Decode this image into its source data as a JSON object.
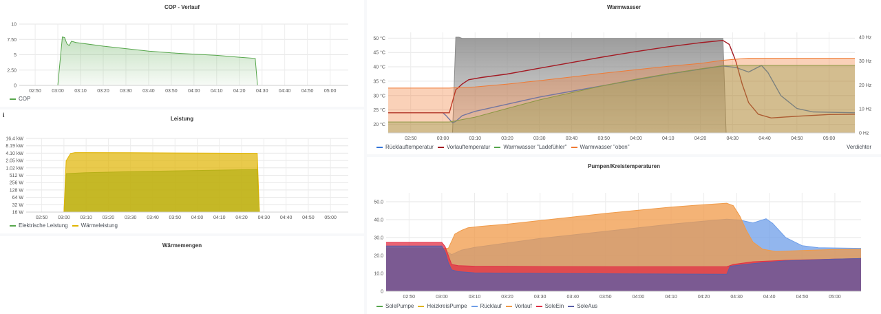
{
  "panels": {
    "cop": {
      "title": "COP - Verlauf"
    },
    "leistung": {
      "title": "Leistung",
      "info_icon": "info-icon"
    },
    "waermemengen": {
      "title": "Wärmemengen"
    },
    "warmwasser": {
      "title": "Warmwasser",
      "right_axis_label": "Verdichter"
    },
    "pumpen": {
      "title": "Pumpen/Kreistemperaturen"
    }
  },
  "time_ticks": [
    "02:50",
    "03:00",
    "03:10",
    "03:20",
    "03:30",
    "03:40",
    "03:50",
    "04:00",
    "04:10",
    "04:20",
    "04:30",
    "04:40",
    "04:50",
    "05:00"
  ],
  "chart_data": [
    {
      "id": "cop",
      "type": "area",
      "title": "COP - Verlauf",
      "x_range": [
        "02:43",
        "05:08"
      ],
      "ylim": [
        0,
        10
      ],
      "y_ticks": [
        "0",
        "2.50",
        "5",
        "7.50",
        "10"
      ],
      "y_tick_values": [
        0,
        2.5,
        5,
        7.5,
        10
      ],
      "grid": true,
      "legend": "bottom-left",
      "series": [
        {
          "name": "COP",
          "color": "#56a64b",
          "points": [
            [
              "02:43",
              0
            ],
            [
              "03:00",
              0
            ],
            [
              "03:01",
              4
            ],
            [
              "03:02",
              7.9
            ],
            [
              "03:03",
              7.8
            ],
            [
              "03:04",
              6.8
            ],
            [
              "03:05",
              6.5
            ],
            [
              "03:06",
              7.2
            ],
            [
              "03:08",
              7.0
            ],
            [
              "03:10",
              6.9
            ],
            [
              "03:20",
              6.4
            ],
            [
              "03:30",
              6.0
            ],
            [
              "03:40",
              5.6
            ],
            [
              "03:50",
              5.3
            ],
            [
              "04:00",
              5.1
            ],
            [
              "04:10",
              4.9
            ],
            [
              "04:20",
              4.6
            ],
            [
              "04:27",
              4.4
            ],
            [
              "04:28",
              0
            ],
            [
              "05:08",
              0
            ]
          ]
        }
      ]
    },
    {
      "id": "leistung",
      "type": "area",
      "title": "Leistung",
      "x_range": [
        "02:43",
        "05:08"
      ],
      "y_scale": "log2",
      "y_ticks": [
        "16 W",
        "32 W",
        "64 W",
        "128 W",
        "256 W",
        "512 W",
        "1.02 kW",
        "2.05 kW",
        "4.10 kW",
        "8.19 kW",
        "16.4 kW"
      ],
      "y_tick_values": [
        16,
        32,
        64,
        128,
        256,
        512,
        1024,
        2048,
        4096,
        8192,
        16384
      ],
      "grid": true,
      "legend": "bottom-left",
      "series": [
        {
          "name": "Elektrische Leistung",
          "color": "#56a64b",
          "points": [
            [
              "02:43",
              16
            ],
            [
              "03:00",
              16
            ],
            [
              "03:01",
              600
            ],
            [
              "03:10",
              650
            ],
            [
              "03:30",
              720
            ],
            [
              "04:00",
              800
            ],
            [
              "04:27",
              880
            ],
            [
              "04:28",
              16
            ],
            [
              "05:08",
              16
            ]
          ]
        },
        {
          "name": "Wärmeleistung",
          "color": "#e0b400",
          "points": [
            [
              "02:43",
              16
            ],
            [
              "03:00",
              16
            ],
            [
              "03:01",
              2000
            ],
            [
              "03:03",
              4000
            ],
            [
              "03:05",
              4300
            ],
            [
              "03:30",
              4250
            ],
            [
              "04:00",
              4150
            ],
            [
              "04:27",
              4050
            ],
            [
              "04:28",
              16
            ],
            [
              "05:08",
              16
            ]
          ]
        }
      ]
    },
    {
      "id": "warmwasser",
      "type": "line",
      "title": "Warmwasser",
      "x_range": [
        "02:43",
        "05:08"
      ],
      "ylim": [
        17,
        52
      ],
      "y_ticks": [
        "20 °C",
        "25 °C",
        "30 °C",
        "35 °C",
        "40 °C",
        "45 °C",
        "50 °C"
      ],
      "y_tick_values": [
        20,
        25,
        30,
        35,
        40,
        45,
        50
      ],
      "y2lim": [
        0,
        42
      ],
      "y2_ticks": [
        "0 Hz",
        "10 Hz",
        "20 Hz",
        "30 Hz",
        "40 Hz"
      ],
      "y2_tick_values": [
        0,
        10,
        20,
        30,
        40
      ],
      "y2_label": "Verdichter",
      "grid": true,
      "legend": "bottom",
      "series": [
        {
          "name": "Verdichter",
          "color": "#8a8a8a",
          "axis": "right",
          "fill": "area",
          "points": [
            [
              "02:43",
              0
            ],
            [
              "03:03",
              0
            ],
            [
              "03:04",
              40
            ],
            [
              "03:05",
              40
            ],
            [
              "03:06",
              39.5
            ],
            [
              "04:27",
              39.5
            ],
            [
              "04:28",
              0
            ],
            [
              "05:08",
              0
            ]
          ]
        },
        {
          "name": "Rücklauftemperatur",
          "color": "#3274d9",
          "axis": "left",
          "points": [
            [
              "02:43",
              24
            ],
            [
              "03:00",
              24
            ],
            [
              "03:01",
              23
            ],
            [
              "03:03",
              20.5
            ],
            [
              "03:04",
              21
            ],
            [
              "03:06",
              23
            ],
            [
              "03:10",
              24.5
            ],
            [
              "03:20",
              27
            ],
            [
              "03:30",
              29.5
            ],
            [
              "03:40",
              31.5
            ],
            [
              "03:50",
              33.5
            ],
            [
              "04:00",
              35.5
            ],
            [
              "04:10",
              37.5
            ],
            [
              "04:20",
              39.2
            ],
            [
              "04:27",
              40.3
            ],
            [
              "04:31",
              39.8
            ],
            [
              "04:35",
              38.2
            ],
            [
              "04:39",
              40.5
            ],
            [
              "04:41",
              38
            ],
            [
              "04:45",
              30
            ],
            [
              "04:50",
              25.5
            ],
            [
              "04:55",
              24.3
            ],
            [
              "05:08",
              24
            ]
          ]
        },
        {
          "name": "Vorlauftemperatur",
          "color": "#a31a23",
          "axis": "left",
          "points": [
            [
              "02:43",
              24
            ],
            [
              "03:02",
              24
            ],
            [
              "03:03",
              28
            ],
            [
              "03:04",
              32
            ],
            [
              "03:06",
              34
            ],
            [
              "03:08",
              35.5
            ],
            [
              "03:12",
              36.3
            ],
            [
              "03:20",
              37.5
            ],
            [
              "03:30",
              39.5
            ],
            [
              "03:40",
              41.5
            ],
            [
              "03:50",
              43.5
            ],
            [
              "04:00",
              45.3
            ],
            [
              "04:10",
              47
            ],
            [
              "04:20",
              48.4
            ],
            [
              "04:27",
              49.2
            ],
            [
              "04:29",
              47.8
            ],
            [
              "04:31",
              42
            ],
            [
              "04:33",
              34
            ],
            [
              "04:35",
              27.5
            ],
            [
              "04:38",
              23.5
            ],
            [
              "04:42",
              22.2
            ],
            [
              "04:50",
              22.8
            ],
            [
              "05:00",
              23.4
            ],
            [
              "05:08",
              23.5
            ]
          ]
        },
        {
          "name": "Warmwasser \"Ladefühler\"",
          "color": "#56a64b",
          "axis": "left",
          "fill": "area",
          "points": [
            [
              "02:43",
              20.8
            ],
            [
              "03:02",
              20.8
            ],
            [
              "03:10",
              22.5
            ],
            [
              "03:20",
              25.5
            ],
            [
              "03:30",
              28.5
            ],
            [
              "03:40",
              31
            ],
            [
              "03:50",
              33.5
            ],
            [
              "04:00",
              35.7
            ],
            [
              "04:10",
              37.6
            ],
            [
              "04:20",
              39.3
            ],
            [
              "04:27",
              40.4
            ],
            [
              "04:30",
              40.5
            ],
            [
              "05:08",
              40.5
            ]
          ]
        },
        {
          "name": "Warmwasser \"oben\"",
          "color": "#f07a34",
          "axis": "left",
          "fill": "area",
          "points": [
            [
              "02:43",
              32.6
            ],
            [
              "03:02",
              32.6
            ],
            [
              "03:10",
              33
            ],
            [
              "03:20",
              34
            ],
            [
              "03:30",
              35.2
            ],
            [
              "03:40",
              36.5
            ],
            [
              "03:50",
              37.8
            ],
            [
              "04:00",
              39
            ],
            [
              "04:10",
              40.2
            ],
            [
              "04:20",
              41.2
            ],
            [
              "04:27",
              42.3
            ],
            [
              "04:35",
              43
            ],
            [
              "05:08",
              43
            ]
          ]
        }
      ]
    },
    {
      "id": "pumpen",
      "type": "area",
      "title": "Pumpen/Kreistemperaturen",
      "x_range": [
        "02:43",
        "05:08"
      ],
      "ylim": [
        0,
        55
      ],
      "y_ticks": [
        "0",
        "10.0",
        "20.0",
        "30.0",
        "40.0",
        "50.0"
      ],
      "y_tick_values": [
        0,
        10,
        20,
        30,
        40,
        50
      ],
      "grid": true,
      "legend": "bottom",
      "series": [
        {
          "name": "SolePumpe",
          "color": "#56a64b",
          "points": []
        },
        {
          "name": "HeizkreisPumpe",
          "color": "#e0b400",
          "points": []
        },
        {
          "name": "Rücklauf",
          "color": "#6e9ee8",
          "points": [
            [
              "02:43",
              24
            ],
            [
              "03:00",
              24
            ],
            [
              "03:03",
              20.5
            ],
            [
              "03:06",
              23
            ],
            [
              "03:10",
              24.5
            ],
            [
              "03:20",
              27
            ],
            [
              "03:30",
              29.5
            ],
            [
              "03:40",
              31.5
            ],
            [
              "03:50",
              33.5
            ],
            [
              "04:00",
              35.5
            ],
            [
              "04:10",
              37.5
            ],
            [
              "04:20",
              39.2
            ],
            [
              "04:27",
              40.3
            ],
            [
              "04:31",
              39.8
            ],
            [
              "04:35",
              38.2
            ],
            [
              "04:39",
              40.5
            ],
            [
              "04:41",
              38
            ],
            [
              "04:45",
              30
            ],
            [
              "04:50",
              25.5
            ],
            [
              "04:55",
              24.3
            ],
            [
              "05:08",
              24
            ]
          ]
        },
        {
          "name": "Vorlauf",
          "color": "#f09a48",
          "points": [
            [
              "02:43",
              24
            ],
            [
              "03:02",
              24
            ],
            [
              "03:03",
              28
            ],
            [
              "03:04",
              32
            ],
            [
              "03:06",
              34
            ],
            [
              "03:08",
              35.5
            ],
            [
              "03:12",
              36.3
            ],
            [
              "03:20",
              37.5
            ],
            [
              "03:30",
              39.5
            ],
            [
              "03:40",
              41.5
            ],
            [
              "03:50",
              43.5
            ],
            [
              "04:00",
              45.3
            ],
            [
              "04:10",
              47
            ],
            [
              "04:20",
              48.4
            ],
            [
              "04:27",
              49.2
            ],
            [
              "04:29",
              47.8
            ],
            [
              "04:31",
              42
            ],
            [
              "04:33",
              34
            ],
            [
              "04:35",
              27.5
            ],
            [
              "04:38",
              23.5
            ],
            [
              "04:42",
              22.2
            ],
            [
              "04:50",
              22.8
            ],
            [
              "05:00",
              23.4
            ],
            [
              "05:08",
              23.5
            ]
          ]
        },
        {
          "name": "SoleEin",
          "color": "#e02f44",
          "points": [
            [
              "02:43",
              27.3
            ],
            [
              "03:00",
              27.3
            ],
            [
              "03:01",
              25
            ],
            [
              "03:02",
              20
            ],
            [
              "03:03",
              15
            ],
            [
              "03:05",
              14.3
            ],
            [
              "03:10",
              14
            ],
            [
              "03:30",
              13.8
            ],
            [
              "04:00",
              13.7
            ],
            [
              "04:27",
              13.7
            ],
            [
              "04:29",
              15
            ],
            [
              "04:35",
              16.5
            ],
            [
              "04:45",
              17.3
            ],
            [
              "05:00",
              18
            ],
            [
              "05:08",
              18.3
            ]
          ]
        },
        {
          "name": "SoleAus",
          "color": "#5a5fa8",
          "points": [
            [
              "02:43",
              25.3
            ],
            [
              "03:00",
              25.3
            ],
            [
              "03:01",
              22
            ],
            [
              "03:02",
              16
            ],
            [
              "03:03",
              12
            ],
            [
              "03:05",
              11
            ],
            [
              "03:10",
              10.3
            ],
            [
              "03:30",
              10
            ],
            [
              "04:00",
              9.7
            ],
            [
              "04:27",
              9.5
            ],
            [
              "04:28",
              14
            ],
            [
              "04:35",
              15.5
            ],
            [
              "04:45",
              17
            ],
            [
              "05:00",
              18
            ],
            [
              "05:08",
              18.3
            ]
          ]
        }
      ]
    }
  ]
}
